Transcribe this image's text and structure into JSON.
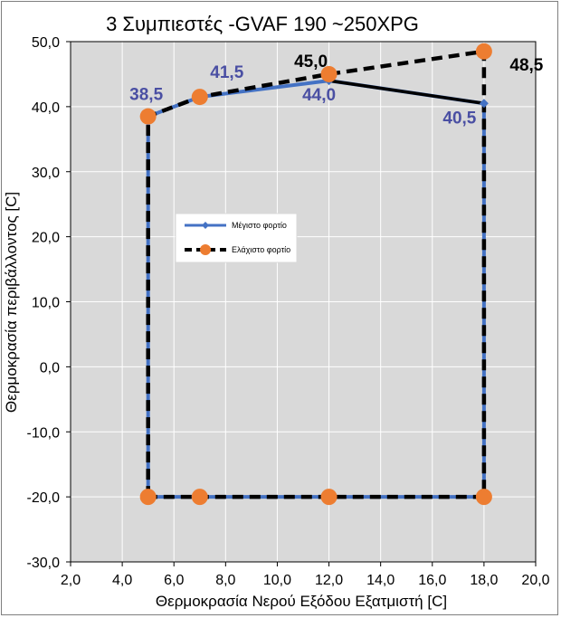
{
  "chart_data": {
    "type": "line",
    "title": "3 Συμπιεστές -GVAF 190 ~250XPG",
    "xlabel": "Θερμοκρασία Νερού Εξόδου Εξατμιστή [C]",
    "ylabel": "Θερμοκρασία περιβάλλοντος [C]",
    "xlim": [
      2,
      20
    ],
    "ylim": [
      -30,
      50
    ],
    "x_ticks": [
      "2,0",
      "4,0",
      "6,0",
      "8,0",
      "10,0",
      "12,0",
      "14,0",
      "16,0",
      "18,0",
      "20,0"
    ],
    "y_ticks": [
      "-30,0",
      "-20,0",
      "-10,0",
      "0,0",
      "10,0",
      "20,0",
      "30,0",
      "40,0",
      "50,0"
    ],
    "grid": true,
    "legend_position": "center-left",
    "series": [
      {
        "name": "Μέγιστο φορτίο",
        "color": "#4472c4",
        "marker": "diamond",
        "points": [
          [
            5,
            -20
          ],
          [
            5,
            38.5
          ],
          [
            7,
            41.5
          ],
          [
            12,
            44
          ],
          [
            18,
            40.5
          ],
          [
            18,
            -20
          ],
          [
            5,
            -20
          ]
        ]
      },
      {
        "name": "Ελάχιστο φορτίο",
        "color": "#000000",
        "marker": "circle",
        "marker_color": "#ed7d31",
        "dashed": true,
        "points": [
          [
            5,
            -20
          ],
          [
            5,
            38.5
          ],
          [
            7,
            41.5
          ],
          [
            12,
            45
          ],
          [
            18,
            48.5
          ],
          [
            18,
            -20
          ],
          [
            12,
            -20
          ],
          [
            7,
            -20
          ],
          [
            5,
            -20
          ]
        ]
      }
    ],
    "annotations": [
      {
        "text": "38,5",
        "x": 5,
        "y": 38.5,
        "color": "#4a4fa3"
      },
      {
        "text": "41,5",
        "x": 7,
        "y": 41.5,
        "color": "#4a4fa3"
      },
      {
        "text": "44,0",
        "x": 12,
        "y": 44,
        "color": "#4a4fa3"
      },
      {
        "text": "40,5",
        "x": 18,
        "y": 40.5,
        "color": "#4a4fa3"
      },
      {
        "text": "45,0",
        "x": 12,
        "y": 45,
        "color": "#000000"
      },
      {
        "text": "48,5",
        "x": 18,
        "y": 48.5,
        "color": "#000000"
      }
    ]
  }
}
